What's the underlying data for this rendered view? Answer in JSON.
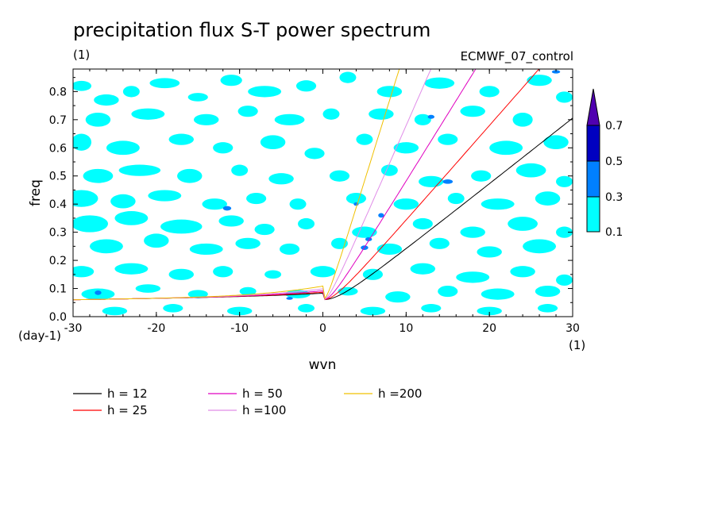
{
  "chart_data": {
    "type": "contour",
    "title": "precipitation flux S-T power spectrum",
    "units_top_left": "(1)",
    "subtitle_right": "ECMWF_07_control",
    "xlabel": "wvn",
    "ylabel": "freq",
    "x_units": "(1)",
    "y_units": "(day-1)",
    "xlim": [
      -30,
      30
    ],
    "ylim": [
      0,
      0.88
    ],
    "x_ticks": [
      -30,
      -20,
      -10,
      0,
      10,
      20,
      30
    ],
    "x_tick_labels": [
      "-30",
      "-20",
      "-10",
      "0",
      "10",
      "20",
      "30"
    ],
    "y_ticks": [
      0,
      0.1,
      0.2,
      0.3,
      0.4,
      0.5,
      0.6,
      0.7,
      0.8
    ],
    "y_tick_labels": [
      "0.0",
      "0.1",
      "0.2",
      "0.3",
      "0.4",
      "0.5",
      "0.6",
      "0.7",
      "0.8"
    ],
    "contour_levels": [
      0.1,
      0.3,
      0.5,
      0.7
    ],
    "colorbar_labels": [
      "0.1",
      "0.3",
      "0.5",
      "0.7"
    ],
    "colorbar_colors": [
      "#00ffff",
      "#0080ff",
      "#0000c0",
      "#5000b0"
    ],
    "dispersion_curves": [
      {
        "name": "h = 12",
        "h": 12,
        "color": "#000000"
      },
      {
        "name": "h = 25",
        "h": 25,
        "color": "#ff0000"
      },
      {
        "name": "h = 50",
        "h": 50,
        "color": "#e000c0"
      },
      {
        "name": "h =100",
        "h": 100,
        "color": "#e08ce8"
      },
      {
        "name": "h =200",
        "h": 200,
        "color": "#f0c000"
      }
    ],
    "blobs_level1": [
      [
        -29,
        0.82,
        1.2,
        0.018
      ],
      [
        -26,
        0.77,
        1.5,
        0.02
      ],
      [
        -23,
        0.8,
        1.0,
        0.02
      ],
      [
        -19,
        0.83,
        1.8,
        0.018
      ],
      [
        -15,
        0.78,
        1.2,
        0.015
      ],
      [
        -11,
        0.84,
        1.3,
        0.02
      ],
      [
        -7,
        0.8,
        2.0,
        0.02
      ],
      [
        -2,
        0.82,
        1.2,
        0.02
      ],
      [
        3,
        0.85,
        1.0,
        0.02
      ],
      [
        8,
        0.8,
        1.5,
        0.02
      ],
      [
        14,
        0.83,
        1.8,
        0.02
      ],
      [
        20,
        0.8,
        1.2,
        0.02
      ],
      [
        26,
        0.84,
        1.5,
        0.02
      ],
      [
        29,
        0.78,
        1.0,
        0.02
      ],
      [
        -27,
        0.7,
        1.5,
        0.025
      ],
      [
        -21,
        0.72,
        2.0,
        0.02
      ],
      [
        -14,
        0.7,
        1.5,
        0.02
      ],
      [
        -9,
        0.73,
        1.2,
        0.02
      ],
      [
        -4,
        0.7,
        1.8,
        0.02
      ],
      [
        1,
        0.72,
        1.0,
        0.02
      ],
      [
        7,
        0.72,
        1.5,
        0.02
      ],
      [
        12,
        0.7,
        1.0,
        0.02
      ],
      [
        18,
        0.73,
        1.5,
        0.02
      ],
      [
        24,
        0.7,
        1.2,
        0.025
      ],
      [
        -29,
        0.62,
        1.2,
        0.03
      ],
      [
        -24,
        0.6,
        2.0,
        0.025
      ],
      [
        -17,
        0.63,
        1.5,
        0.02
      ],
      [
        -12,
        0.6,
        1.2,
        0.02
      ],
      [
        -6,
        0.62,
        1.5,
        0.025
      ],
      [
        -1,
        0.58,
        1.2,
        0.02
      ],
      [
        5,
        0.63,
        1.0,
        0.02
      ],
      [
        10,
        0.6,
        1.5,
        0.02
      ],
      [
        15,
        0.63,
        1.2,
        0.02
      ],
      [
        22,
        0.6,
        2.0,
        0.025
      ],
      [
        28,
        0.62,
        1.5,
        0.025
      ],
      [
        -27,
        0.5,
        1.8,
        0.025
      ],
      [
        -22,
        0.52,
        2.5,
        0.02
      ],
      [
        -16,
        0.5,
        1.5,
        0.025
      ],
      [
        -10,
        0.52,
        1.0,
        0.02
      ],
      [
        -5,
        0.49,
        1.5,
        0.02
      ],
      [
        2,
        0.5,
        1.2,
        0.02
      ],
      [
        8,
        0.52,
        1.0,
        0.02
      ],
      [
        13,
        0.48,
        1.5,
        0.02
      ],
      [
        19,
        0.5,
        1.2,
        0.02
      ],
      [
        25,
        0.52,
        1.8,
        0.025
      ],
      [
        29,
        0.48,
        1.0,
        0.02
      ],
      [
        -29,
        0.42,
        2.0,
        0.03
      ],
      [
        -24,
        0.41,
        1.5,
        0.025
      ],
      [
        -19,
        0.43,
        2.0,
        0.02
      ],
      [
        -13,
        0.4,
        1.5,
        0.02
      ],
      [
        -8,
        0.42,
        1.2,
        0.02
      ],
      [
        -3,
        0.4,
        1.0,
        0.02
      ],
      [
        4,
        0.42,
        1.2,
        0.02
      ],
      [
        10,
        0.4,
        1.5,
        0.02
      ],
      [
        16,
        0.42,
        1.0,
        0.02
      ],
      [
        21,
        0.4,
        2.0,
        0.02
      ],
      [
        27,
        0.42,
        1.5,
        0.025
      ],
      [
        -28,
        0.33,
        2.2,
        0.03
      ],
      [
        -23,
        0.35,
        2.0,
        0.025
      ],
      [
        -17,
        0.32,
        2.5,
        0.025
      ],
      [
        -11,
        0.34,
        1.5,
        0.02
      ],
      [
        -7,
        0.31,
        1.2,
        0.02
      ],
      [
        -2,
        0.33,
        1.0,
        0.02
      ],
      [
        5,
        0.3,
        1.5,
        0.02
      ],
      [
        12,
        0.33,
        1.2,
        0.02
      ],
      [
        18,
        0.3,
        1.5,
        0.02
      ],
      [
        24,
        0.33,
        1.8,
        0.025
      ],
      [
        29,
        0.3,
        1.0,
        0.02
      ],
      [
        -26,
        0.25,
        2.0,
        0.025
      ],
      [
        -20,
        0.27,
        1.5,
        0.025
      ],
      [
        -14,
        0.24,
        2.0,
        0.02
      ],
      [
        -9,
        0.26,
        1.5,
        0.02
      ],
      [
        -4,
        0.24,
        1.2,
        0.02
      ],
      [
        2,
        0.26,
        1.0,
        0.02
      ],
      [
        8,
        0.24,
        1.5,
        0.02
      ],
      [
        14,
        0.26,
        1.2,
        0.02
      ],
      [
        20,
        0.23,
        1.5,
        0.02
      ],
      [
        26,
        0.25,
        2.0,
        0.025
      ],
      [
        -29,
        0.16,
        1.5,
        0.02
      ],
      [
        -23,
        0.17,
        2.0,
        0.02
      ],
      [
        -17,
        0.15,
        1.5,
        0.02
      ],
      [
        -12,
        0.16,
        1.2,
        0.02
      ],
      [
        -6,
        0.15,
        1.0,
        0.015
      ],
      [
        0,
        0.16,
        1.5,
        0.02
      ],
      [
        6,
        0.15,
        1.2,
        0.02
      ],
      [
        12,
        0.17,
        1.5,
        0.02
      ],
      [
        18,
        0.14,
        2.0,
        0.02
      ],
      [
        24,
        0.16,
        1.5,
        0.02
      ],
      [
        29,
        0.13,
        1.0,
        0.02
      ],
      [
        -27,
        0.08,
        2.0,
        0.02
      ],
      [
        -21,
        0.1,
        1.5,
        0.015
      ],
      [
        -15,
        0.08,
        1.2,
        0.015
      ],
      [
        -9,
        0.09,
        1.0,
        0.015
      ],
      [
        -3,
        0.08,
        1.5,
        0.015
      ],
      [
        3,
        0.09,
        1.2,
        0.015
      ],
      [
        9,
        0.07,
        1.5,
        0.02
      ],
      [
        15,
        0.09,
        1.2,
        0.02
      ],
      [
        21,
        0.08,
        2.0,
        0.02
      ],
      [
        27,
        0.09,
        1.5,
        0.02
      ],
      [
        -25,
        0.02,
        1.5,
        0.015
      ],
      [
        -18,
        0.03,
        1.2,
        0.015
      ],
      [
        -10,
        0.02,
        1.5,
        0.015
      ],
      [
        -2,
        0.03,
        1.0,
        0.015
      ],
      [
        6,
        0.02,
        1.5,
        0.015
      ],
      [
        13,
        0.03,
        1.2,
        0.015
      ],
      [
        20,
        0.02,
        1.5,
        0.015
      ],
      [
        27,
        0.03,
        1.2,
        0.015
      ]
    ],
    "blobs_level2": [
      [
        -27,
        0.085,
        0.4,
        0.008
      ],
      [
        -11.5,
        0.385,
        0.5,
        0.008
      ],
      [
        5,
        0.245,
        0.45,
        0.008
      ],
      [
        5.5,
        0.275,
        0.4,
        0.007
      ],
      [
        15,
        0.48,
        0.6,
        0.008
      ],
      [
        7,
        0.36,
        0.35,
        0.008
      ],
      [
        28,
        0.87,
        0.5,
        0.006
      ],
      [
        -4,
        0.065,
        0.4,
        0.005
      ],
      [
        4,
        0.4,
        0.3,
        0.006
      ],
      [
        13,
        0.71,
        0.4,
        0.007
      ]
    ]
  },
  "legend": [
    {
      "label": "h = 12",
      "color": "#000000"
    },
    {
      "label": "h = 25",
      "color": "#ff0000"
    },
    {
      "label": "h = 50",
      "color": "#e000c0"
    },
    {
      "label": "h =100",
      "color": "#e08ce8"
    },
    {
      "label": "h =200",
      "color": "#f0c000"
    }
  ]
}
